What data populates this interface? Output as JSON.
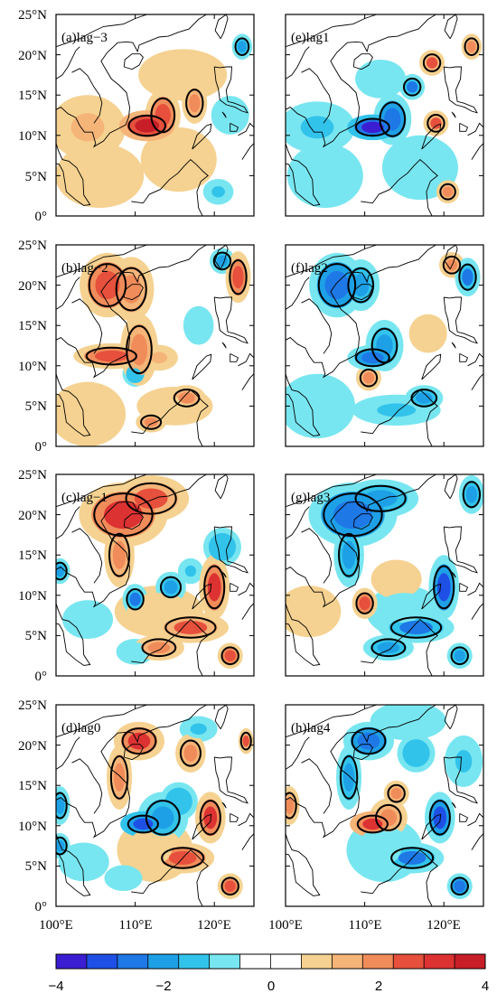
{
  "figure": {
    "panels": [
      {
        "label": "(a)lag−3"
      },
      {
        "label": "(b)lag−2"
      },
      {
        "label": "(c)lag−1"
      },
      {
        "label": "(d)lag0"
      },
      {
        "label": "(e)lag1"
      },
      {
        "label": "(f)lag2"
      },
      {
        "label": "(g)lag3"
      },
      {
        "label": "(h)lag4"
      }
    ],
    "lat_ticks": [
      "0°",
      "5°N",
      "10°N",
      "15°N",
      "20°N",
      "25°N"
    ],
    "lon_ticks": [
      "100°E",
      "110°E",
      "120°E"
    ],
    "lon_range": [
      100,
      125
    ],
    "lat_range": [
      0,
      25
    ]
  },
  "colorbar": {
    "levels": [
      -4,
      -3.5,
      -3,
      -2.5,
      -2,
      -1.5,
      -1,
      -0.5,
      0.5,
      1,
      1.5,
      2,
      2.5,
      3,
      3.5,
      4
    ],
    "tick_labels": [
      "−4",
      "−2",
      "0",
      "2",
      "4"
    ],
    "tick_values": [
      -4,
      -2,
      0,
      2,
      4
    ],
    "colors": [
      "#3c1ed2",
      "#1e50e6",
      "#1e78e6",
      "#1ea0e6",
      "#32c3eb",
      "#78e6f0",
      "#ffffff",
      "#ffffff",
      "#f5d291",
      "#f5b478",
      "#f08c5a",
      "#e6503c",
      "#dc3232",
      "#c81e28"
    ]
  },
  "colors": {
    "coast": "#000000",
    "contour": "#000000"
  },
  "chart_data": {
    "type": "heatmap",
    "description_units": "lag panels of composite anomaly over 100-125E, 0-25N",
    "x_range": [
      100,
      125
    ],
    "y_range": [
      0,
      25
    ],
    "color_range": [
      -4,
      4
    ],
    "panels": [
      {
        "name": "(a)lag−3",
        "blobs": [
          {
            "lon": 111.5,
            "lat": 11.2,
            "rx": 2.2,
            "ry": 1.2,
            "v": 3.8
          },
          {
            "lon": 113.5,
            "lat": 12.5,
            "rx": 1.4,
            "ry": 2.0,
            "v": 2.6
          },
          {
            "lon": 117.5,
            "lat": 14.0,
            "rx": 1.0,
            "ry": 1.6,
            "v": 2.2
          },
          {
            "lon": 116.0,
            "lat": 17.5,
            "rx": 3.5,
            "ry": 2.0,
            "v": 0.9
          },
          {
            "lon": 104.0,
            "lat": 11.0,
            "rx": 3.0,
            "ry": 2.5,
            "v": 1.3
          },
          {
            "lon": 105.5,
            "lat": 5.0,
            "rx": 3.5,
            "ry": 2.5,
            "v": 0.8
          },
          {
            "lon": 115.5,
            "lat": 7.0,
            "rx": 3.0,
            "ry": 2.5,
            "v": 0.7
          },
          {
            "lon": 123.5,
            "lat": 21.0,
            "rx": 0.8,
            "ry": 1.0,
            "v": -2.0
          },
          {
            "lon": 120.5,
            "lat": 3.0,
            "rx": 1.2,
            "ry": 1.0,
            "v": -1.3
          },
          {
            "lon": 122.0,
            "lat": 12.5,
            "rx": 1.5,
            "ry": 1.5,
            "v": -0.9
          }
        ]
      },
      {
        "name": "(b)lag−2",
        "blobs": [
          {
            "lon": 106.5,
            "lat": 20.0,
            "rx": 2.2,
            "ry": 2.5,
            "v": 2.8
          },
          {
            "lon": 109.5,
            "lat": 19.5,
            "rx": 1.8,
            "ry": 2.5,
            "v": 2.0
          },
          {
            "lon": 107.0,
            "lat": 11.2,
            "rx": 3.0,
            "ry": 1.0,
            "v": 2.6
          },
          {
            "lon": 110.5,
            "lat": 12.0,
            "rx": 1.5,
            "ry": 2.8,
            "v": 2.2
          },
          {
            "lon": 113.0,
            "lat": 11.0,
            "rx": 1.5,
            "ry": 1.0,
            "v": 1.5
          },
          {
            "lon": 110.0,
            "lat": 9.0,
            "rx": 1.0,
            "ry": 1.0,
            "v": -1.6
          },
          {
            "lon": 115.0,
            "lat": 5.0,
            "rx": 3.0,
            "ry": 1.5,
            "v": 1.0
          },
          {
            "lon": 116.5,
            "lat": 6.0,
            "rx": 1.5,
            "ry": 1.0,
            "v": 2.0
          },
          {
            "lon": 112.0,
            "lat": 3.0,
            "rx": 1.2,
            "ry": 0.8,
            "v": 2.2
          },
          {
            "lon": 123.0,
            "lat": 21.0,
            "rx": 1.0,
            "ry": 2.0,
            "v": 2.5
          },
          {
            "lon": 121.0,
            "lat": 23.0,
            "rx": 1.0,
            "ry": 1.0,
            "v": -2.2
          },
          {
            "lon": 118.0,
            "lat": 15.0,
            "rx": 1.2,
            "ry": 1.5,
            "v": -1.0
          },
          {
            "lon": 104.0,
            "lat": 4.0,
            "rx": 3.0,
            "ry": 2.5,
            "v": 0.8
          }
        ]
      },
      {
        "name": "(c)lag−1",
        "blobs": [
          {
            "lon": 108.5,
            "lat": 20.0,
            "rx": 3.5,
            "ry": 2.5,
            "v": 3.0
          },
          {
            "lon": 112.0,
            "lat": 22.0,
            "rx": 3.0,
            "ry": 1.8,
            "v": 2.4
          },
          {
            "lon": 108.0,
            "lat": 15.0,
            "rx": 1.2,
            "ry": 2.5,
            "v": 1.8
          },
          {
            "lon": 120.0,
            "lat": 11.0,
            "rx": 1.2,
            "ry": 2.5,
            "v": 3.0
          },
          {
            "lon": 117.0,
            "lat": 6.0,
            "rx": 3.0,
            "ry": 1.2,
            "v": 2.4
          },
          {
            "lon": 113.0,
            "lat": 3.5,
            "rx": 2.0,
            "ry": 1.0,
            "v": 2.0
          },
          {
            "lon": 122.0,
            "lat": 2.5,
            "rx": 1.0,
            "ry": 1.0,
            "v": 2.6
          },
          {
            "lon": 110.0,
            "lat": 9.5,
            "rx": 1.0,
            "ry": 1.2,
            "v": -2.4
          },
          {
            "lon": 114.5,
            "lat": 11.0,
            "rx": 1.2,
            "ry": 1.2,
            "v": -1.8
          },
          {
            "lon": 117.0,
            "lat": 13.0,
            "rx": 1.0,
            "ry": 1.0,
            "v": -1.4
          },
          {
            "lon": 100.5,
            "lat": 13.0,
            "rx": 0.8,
            "ry": 1.0,
            "v": -1.8
          },
          {
            "lon": 104.0,
            "lat": 7.0,
            "rx": 2.0,
            "ry": 1.5,
            "v": -0.9
          },
          {
            "lon": 121.0,
            "lat": 16.0,
            "rx": 1.5,
            "ry": 1.5,
            "v": -1.6
          },
          {
            "lon": 110.0,
            "lat": 3.0,
            "rx": 1.5,
            "ry": 1.0,
            "v": -0.9
          },
          {
            "lon": 113.0,
            "lat": 8.0,
            "rx": 3.5,
            "ry": 2.0,
            "v": 0.8
          }
        ]
      },
      {
        "name": "(d)lag0",
        "blobs": [
          {
            "lon": 111.0,
            "lat": 10.2,
            "rx": 1.8,
            "ry": 1.0,
            "v": -3.2
          },
          {
            "lon": 113.5,
            "lat": 11.0,
            "rx": 2.0,
            "ry": 2.0,
            "v": -2.2
          },
          {
            "lon": 115.5,
            "lat": 13.0,
            "rx": 1.5,
            "ry": 1.5,
            "v": -1.6
          },
          {
            "lon": 100.5,
            "lat": 12.5,
            "rx": 0.8,
            "ry": 1.5,
            "v": -2.2
          },
          {
            "lon": 100.5,
            "lat": 7.5,
            "rx": 0.8,
            "ry": 1.0,
            "v": -1.8
          },
          {
            "lon": 103.5,
            "lat": 5.5,
            "rx": 2.0,
            "ry": 1.5,
            "v": -0.9
          },
          {
            "lon": 110.5,
            "lat": 20.5,
            "rx": 2.0,
            "ry": 1.5,
            "v": 3.0
          },
          {
            "lon": 108.0,
            "lat": 16.0,
            "rx": 1.0,
            "ry": 2.5,
            "v": 1.8
          },
          {
            "lon": 119.5,
            "lat": 11.0,
            "rx": 1.2,
            "ry": 2.0,
            "v": 3.0
          },
          {
            "lon": 116.0,
            "lat": 6.0,
            "rx": 2.5,
            "ry": 1.2,
            "v": 2.6
          },
          {
            "lon": 122.0,
            "lat": 2.5,
            "rx": 1.0,
            "ry": 1.0,
            "v": 2.8
          },
          {
            "lon": 117.0,
            "lat": 19.0,
            "rx": 1.2,
            "ry": 1.5,
            "v": 1.8
          },
          {
            "lon": 124.0,
            "lat": 20.5,
            "rx": 0.6,
            "ry": 1.0,
            "v": 2.4
          },
          {
            "lon": 118.0,
            "lat": 22.0,
            "rx": 1.5,
            "ry": 1.0,
            "v": -1.4
          },
          {
            "lon": 108.5,
            "lat": 3.5,
            "rx": 1.5,
            "ry": 1.0,
            "v": -1.0
          },
          {
            "lon": 112.5,
            "lat": 7.0,
            "rx": 3.0,
            "ry": 2.5,
            "v": 0.8
          }
        ]
      },
      {
        "name": "(e)lag1",
        "blobs": [
          {
            "lon": 111.0,
            "lat": 11.0,
            "rx": 2.0,
            "ry": 1.0,
            "v": -3.8
          },
          {
            "lon": 113.5,
            "lat": 12.0,
            "rx": 1.5,
            "ry": 2.0,
            "v": -2.6
          },
          {
            "lon": 116.0,
            "lat": 16.0,
            "rx": 1.0,
            "ry": 1.0,
            "v": -2.4
          },
          {
            "lon": 119.0,
            "lat": 11.5,
            "rx": 1.0,
            "ry": 1.0,
            "v": 2.4
          },
          {
            "lon": 118.5,
            "lat": 19.0,
            "rx": 1.0,
            "ry": 1.0,
            "v": 2.4
          },
          {
            "lon": 120.5,
            "lat": 3.0,
            "rx": 0.9,
            "ry": 0.9,
            "v": 2.2
          },
          {
            "lon": 104.0,
            "lat": 11.0,
            "rx": 3.0,
            "ry": 2.0,
            "v": -1.2
          },
          {
            "lon": 105.0,
            "lat": 5.0,
            "rx": 3.0,
            "ry": 2.5,
            "v": -0.8
          },
          {
            "lon": 117.0,
            "lat": 6.0,
            "rx": 3.0,
            "ry": 2.5,
            "v": -0.7
          },
          {
            "lon": 123.5,
            "lat": 21.0,
            "rx": 0.8,
            "ry": 1.0,
            "v": 2.0
          },
          {
            "lon": 112.0,
            "lat": 17.0,
            "rx": 2.0,
            "ry": 1.5,
            "v": -0.8
          }
        ]
      },
      {
        "name": "(f)lag2",
        "blobs": [
          {
            "lon": 106.5,
            "lat": 20.0,
            "rx": 2.2,
            "ry": 2.5,
            "v": -2.6
          },
          {
            "lon": 109.5,
            "lat": 20.0,
            "rx": 1.5,
            "ry": 2.0,
            "v": -2.0
          },
          {
            "lon": 111.0,
            "lat": 11.0,
            "rx": 2.0,
            "ry": 1.0,
            "v": -2.6
          },
          {
            "lon": 112.5,
            "lat": 12.5,
            "rx": 1.5,
            "ry": 2.0,
            "v": -2.0
          },
          {
            "lon": 110.5,
            "lat": 8.5,
            "rx": 1.0,
            "ry": 1.0,
            "v": 2.2
          },
          {
            "lon": 114.0,
            "lat": 4.5,
            "rx": 3.5,
            "ry": 1.2,
            "v": -1.2
          },
          {
            "lon": 117.5,
            "lat": 6.0,
            "rx": 1.5,
            "ry": 1.0,
            "v": -1.8
          },
          {
            "lon": 123.0,
            "lat": 21.0,
            "rx": 1.0,
            "ry": 1.5,
            "v": -2.4
          },
          {
            "lon": 121.0,
            "lat": 22.5,
            "rx": 1.0,
            "ry": 1.0,
            "v": 2.0
          },
          {
            "lon": 118.0,
            "lat": 14.0,
            "rx": 1.5,
            "ry": 1.5,
            "v": 0.8
          },
          {
            "lon": 104.0,
            "lat": 5.0,
            "rx": 3.0,
            "ry": 2.5,
            "v": -0.8
          }
        ]
      },
      {
        "name": "(g)lag3",
        "blobs": [
          {
            "lon": 108.5,
            "lat": 20.0,
            "rx": 3.5,
            "ry": 2.5,
            "v": -2.8
          },
          {
            "lon": 112.0,
            "lat": 22.0,
            "rx": 3.0,
            "ry": 1.5,
            "v": -2.2
          },
          {
            "lon": 108.0,
            "lat": 15.0,
            "rx": 1.2,
            "ry": 2.5,
            "v": -1.8
          },
          {
            "lon": 120.0,
            "lat": 11.0,
            "rx": 1.2,
            "ry": 2.5,
            "v": -3.0
          },
          {
            "lon": 116.5,
            "lat": 6.0,
            "rx": 3.0,
            "ry": 1.2,
            "v": -2.4
          },
          {
            "lon": 113.0,
            "lat": 3.5,
            "rx": 2.0,
            "ry": 1.0,
            "v": -1.8
          },
          {
            "lon": 122.0,
            "lat": 2.5,
            "rx": 1.0,
            "ry": 1.0,
            "v": -2.2
          },
          {
            "lon": 110.0,
            "lat": 9.0,
            "rx": 1.0,
            "ry": 1.2,
            "v": 2.6
          },
          {
            "lon": 114.0,
            "lat": 12.0,
            "rx": 2.0,
            "ry": 1.5,
            "v": 1.0
          },
          {
            "lon": 123.5,
            "lat": 22.5,
            "rx": 1.0,
            "ry": 1.5,
            "v": -2.2
          },
          {
            "lon": 103.0,
            "lat": 8.0,
            "rx": 2.5,
            "ry": 2.0,
            "v": 0.9
          },
          {
            "lon": 115.0,
            "lat": 8.0,
            "rx": 3.0,
            "ry": 2.0,
            "v": -0.8
          }
        ]
      },
      {
        "name": "(h)lag4",
        "blobs": [
          {
            "lon": 111.0,
            "lat": 10.2,
            "rx": 1.8,
            "ry": 1.0,
            "v": 3.2
          },
          {
            "lon": 113.0,
            "lat": 11.0,
            "rx": 1.5,
            "ry": 1.5,
            "v": 2.0
          },
          {
            "lon": 114.0,
            "lat": 14.0,
            "rx": 1.0,
            "ry": 1.0,
            "v": 1.8
          },
          {
            "lon": 100.5,
            "lat": 12.5,
            "rx": 0.8,
            "ry": 1.5,
            "v": 2.2
          },
          {
            "lon": 110.5,
            "lat": 20.5,
            "rx": 2.0,
            "ry": 1.5,
            "v": -2.8
          },
          {
            "lon": 108.0,
            "lat": 16.0,
            "rx": 1.0,
            "ry": 2.5,
            "v": -1.8
          },
          {
            "lon": 119.5,
            "lat": 11.0,
            "rx": 1.2,
            "ry": 2.0,
            "v": -3.0
          },
          {
            "lon": 116.0,
            "lat": 6.0,
            "rx": 2.5,
            "ry": 1.2,
            "v": -2.4
          },
          {
            "lon": 122.0,
            "lat": 2.5,
            "rx": 1.0,
            "ry": 1.0,
            "v": -2.6
          },
          {
            "lon": 116.5,
            "lat": 19.0,
            "rx": 1.5,
            "ry": 1.5,
            "v": -1.6
          },
          {
            "lon": 122.5,
            "lat": 18.0,
            "rx": 1.5,
            "ry": 2.0,
            "v": -1.2
          },
          {
            "lon": 115.5,
            "lat": 23.0,
            "rx": 3.0,
            "ry": 1.5,
            "v": -1.0
          },
          {
            "lon": 112.5,
            "lat": 7.0,
            "rx": 3.0,
            "ry": 2.5,
            "v": -0.8
          }
        ]
      }
    ]
  }
}
